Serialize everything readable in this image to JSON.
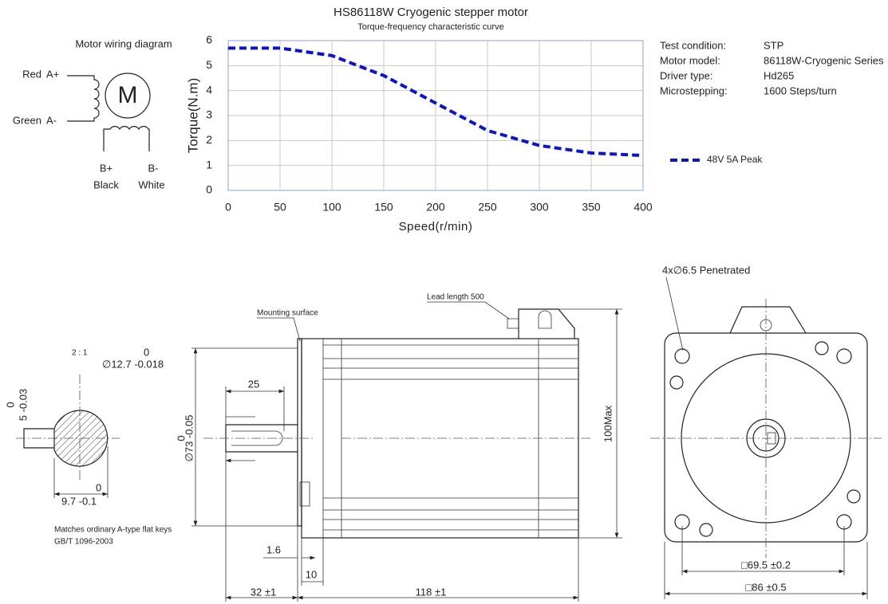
{
  "chart_data": {
    "type": "line",
    "title": "HS86118W Cryogenic stepper motor",
    "subtitle": "Torque-frequency characteristic curve",
    "x_label": "Speed(r/min)",
    "y_label": "Torque(N.m)",
    "x": [
      0,
      50,
      100,
      150,
      200,
      250,
      300,
      350,
      400
    ],
    "series": [
      {
        "name": "48V 5A Peak",
        "color": "#0a14c8",
        "values": [
          5.7,
          5.7,
          5.4,
          4.6,
          3.5,
          2.4,
          1.8,
          1.5,
          1.4
        ]
      }
    ],
    "xlim": [
      0,
      400
    ],
    "xticks": [
      0,
      50,
      100,
      150,
      200,
      250,
      300,
      350,
      400
    ],
    "ylim": [
      0,
      6
    ],
    "yticks": [
      0,
      1,
      2,
      3,
      4,
      5,
      6
    ],
    "grid": true,
    "dashed": true
  },
  "wiring": {
    "title": "Motor wiring diagram",
    "motor": "M",
    "a_plus_color": "Red",
    "a_plus": "A+",
    "a_minus_color": "Green",
    "a_minus": "A-",
    "b_plus": "B+",
    "b_minus": "B-",
    "b_plus_color": "Black",
    "b_minus_color": "White"
  },
  "test_conditions": [
    {
      "label": "Test condition:",
      "value": "STP"
    },
    {
      "label": "Motor model:",
      "value": "86118W-Cryogenic Series"
    },
    {
      "label": "Driver type:",
      "value": "Hd265"
    },
    {
      "label": "Microstepping:",
      "value": "1600 Steps/turn"
    }
  ],
  "drawings": {
    "key_scale": "2 : 1",
    "shaft_dia_upper": "0",
    "shaft_dia": "∅12.7 -0.018",
    "key_width_upper": "0",
    "key_width": "5 -0.03",
    "flat_upper": "0",
    "flat_depth": "9.7 -0.1",
    "key_note": "Matches ordinary A-type flat keys",
    "key_standard": "GB/T 1096-2003",
    "mounting_surface": "Mounting surface",
    "lead_length": "Lead length 500",
    "key_length": "25",
    "pilot_upper": "0",
    "pilot_dia": "∅73 -0.05",
    "max_height": "100Max",
    "flange_thickness": "1.6",
    "boss_length": "10",
    "shaft_length": "32 ±1",
    "body_length": "118 ±1",
    "hole_note": "4x∅6.5 Penetrated",
    "hole_spacing": "□69.5 ±0.2",
    "flange_size": "□86 ±0.5"
  }
}
